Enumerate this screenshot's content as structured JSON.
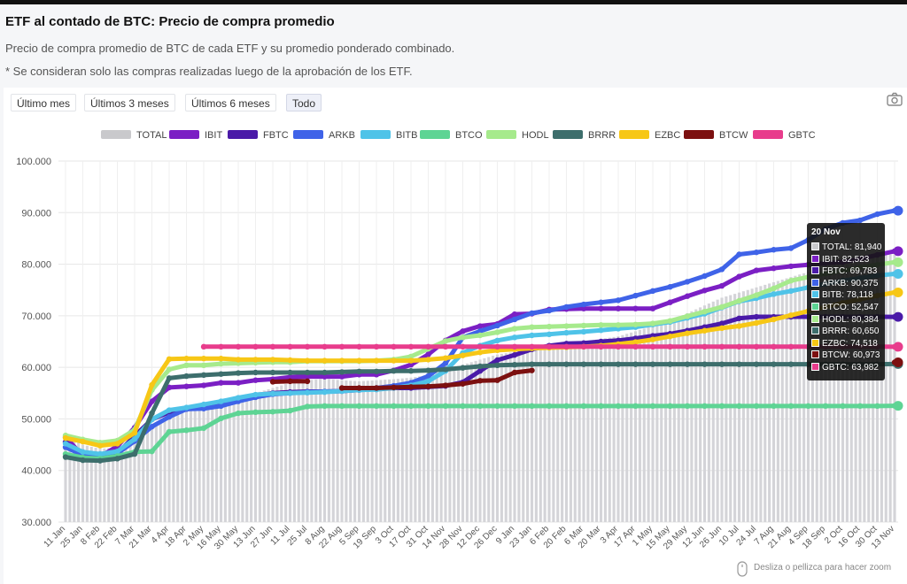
{
  "header": {
    "title": "ETF al contado de BTC: Precio de compra promedio",
    "subtitle": "Precio de compra promedio de BTC de cada ETF y su promedio ponderado combinado.",
    "note": "* Se consideran solo las compras realizadas luego de la aprobación de los ETF."
  },
  "range_buttons": [
    {
      "label": "Último mes",
      "active": false
    },
    {
      "label": "Últimos 3 meses",
      "active": false
    },
    {
      "label": "Últimos 6 meses",
      "active": false
    },
    {
      "label": "Todo",
      "active": true
    }
  ],
  "icons": {
    "camera": "camera-icon",
    "mouse": "mouse-icon"
  },
  "hint": "Desliza o pellizca para hacer zoom",
  "tooltip": {
    "date": "20 Nov",
    "rows": [
      {
        "name": "TOTAL",
        "value": "81,940",
        "color": "#c9c9cc"
      },
      {
        "name": "IBIT",
        "value": "82,523",
        "color": "#7b1fc4"
      },
      {
        "name": "FBTC",
        "value": "69,783",
        "color": "#4a1aa8"
      },
      {
        "name": "ARKB",
        "value": "90,375",
        "color": "#3f63e8"
      },
      {
        "name": "BITB",
        "value": "78,118",
        "color": "#4fc3e8"
      },
      {
        "name": "BTCO",
        "value": "52,547",
        "color": "#5ed494"
      },
      {
        "name": "HODL",
        "value": "80,384",
        "color": "#a6ea8c"
      },
      {
        "name": "BRRR",
        "value": "60,650",
        "color": "#3d6e6c"
      },
      {
        "name": "EZBC",
        "value": "74,518",
        "color": "#f7c716"
      },
      {
        "name": "BTCW",
        "value": "60,973",
        "color": "#7c1010"
      },
      {
        "name": "GBTC",
        "value": "63,982",
        "color": "#e83c8c"
      }
    ]
  },
  "chart_data": {
    "type": "line",
    "title": "",
    "xlabel": "",
    "ylabel": "",
    "ylim": [
      30000,
      100000
    ],
    "y_ticks": [
      "30.000",
      "40.000",
      "50.000",
      "60.000",
      "70.000",
      "80.000",
      "90.000",
      "100.000"
    ],
    "x_ticks": [
      "11 Jan",
      "25 Jan",
      "8 Feb",
      "22 Feb",
      "7 Mar",
      "21 Mar",
      "4 Apr",
      "18 Apr",
      "2 May",
      "16 May",
      "30 May",
      "13 Jun",
      "27 Jun",
      "11 Jul",
      "25 Jul",
      "8 Aug",
      "22 Aug",
      "5 Sep",
      "19 Sep",
      "3 Oct",
      "17 Oct",
      "31 Oct",
      "14 Nov",
      "28 Nov",
      "12 Dec",
      "26 Dec",
      "9 Jan",
      "23 Jan",
      "6 Feb",
      "20 Feb",
      "6 Mar",
      "20 Mar",
      "3 Apr",
      "17 Apr",
      "1 May",
      "15 May",
      "29 May",
      "12 Jun",
      "26 Jun",
      "10 Jul",
      "24 Jul",
      "7 Aug",
      "21 Aug",
      "4 Sep",
      "18 Sep",
      "2 Oct",
      "16 Oct",
      "30 Oct",
      "13 Nov"
    ],
    "grid": true,
    "legend_position": "top",
    "series": [
      {
        "name": "TOTAL",
        "color": "#c9c9cc",
        "kind": "bar",
        "values": [
          46500,
          45000,
          44200,
          44500,
          46000,
          48500,
          51000,
          52500,
          53000,
          53500,
          54500,
          55000,
          56000,
          57000,
          57500,
          57800,
          57500,
          57300,
          57500,
          57700,
          58000,
          58500,
          59500,
          60500,
          61500,
          62500,
          63000,
          63500,
          64000,
          64500,
          65000,
          65500,
          66000,
          67000,
          68000,
          69000,
          70500,
          72000,
          73500,
          74500,
          75500,
          76500,
          77500,
          78500,
          79500,
          80500,
          81000,
          81500,
          81940
        ]
      },
      {
        "name": "IBIT",
        "color": "#7b1fc4",
        "values": [
          46500,
          42800,
          42700,
          44700,
          48300,
          53400,
          56100,
          56300,
          56500,
          57000,
          57000,
          57500,
          57700,
          58100,
          58200,
          58200,
          58200,
          58600,
          58600,
          59400,
          60500,
          62500,
          65200,
          67000,
          68000,
          68400,
          70300,
          70400,
          71200,
          71300,
          71400,
          71400,
          71400,
          71400,
          71400,
          72600,
          73800,
          74900,
          75800,
          77600,
          78800,
          79200,
          79600,
          79900,
          80200,
          80400,
          81000,
          81800,
          82523
        ]
      },
      {
        "name": "FBTC",
        "color": "#4a1aa8",
        "values": [
          45500,
          42600,
          42300,
          43300,
          46700,
          49900,
          51300,
          52100,
          52400,
          53000,
          53800,
          54600,
          55000,
          55200,
          55300,
          55300,
          55400,
          55600,
          55800,
          56000,
          56000,
          56200,
          56400,
          57100,
          59300,
          61400,
          62400,
          63500,
          64200,
          64600,
          64700,
          65000,
          65200,
          65600,
          66100,
          66500,
          67100,
          67800,
          68500,
          69500,
          69800,
          69800,
          69800,
          69800,
          69800,
          69800,
          69800,
          69800,
          69783
        ]
      },
      {
        "name": "ARKB",
        "color": "#3f63e8",
        "values": [
          44500,
          43000,
          42600,
          43300,
          45700,
          48500,
          50400,
          51900,
          52000,
          52500,
          53400,
          54200,
          54800,
          55000,
          55200,
          55300,
          55400,
          55700,
          56000,
          56400,
          57000,
          58300,
          60800,
          65800,
          67000,
          68100,
          69300,
          70500,
          71000,
          71700,
          72200,
          72600,
          73000,
          73900,
          74800,
          75600,
          76600,
          77700,
          79000,
          81900,
          82300,
          82800,
          83100,
          84700,
          86800,
          88000,
          88500,
          89700,
          90375
        ]
      },
      {
        "name": "BITB",
        "color": "#4fc3e8",
        "values": [
          45200,
          43600,
          43200,
          43700,
          46100,
          49900,
          51700,
          52200,
          52800,
          53400,
          54100,
          54700,
          54900,
          55000,
          55100,
          55200,
          55400,
          55600,
          55700,
          56000,
          56500,
          57300,
          59300,
          62800,
          64200,
          65200,
          65800,
          66200,
          66400,
          66700,
          66900,
          67200,
          67500,
          67800,
          68300,
          68800,
          69600,
          70400,
          71600,
          72800,
          73400,
          74200,
          74800,
          75500,
          76200,
          76800,
          77300,
          77800,
          78118
        ]
      },
      {
        "name": "BTCO",
        "color": "#5ed494",
        "values": [
          43200,
          42500,
          42300,
          42800,
          43600,
          43700,
          47500,
          47800,
          48200,
          50100,
          51100,
          51300,
          51400,
          51600,
          52400,
          52500,
          52500,
          52500,
          52500,
          52500,
          52500,
          52500,
          52500,
          52500,
          52500,
          52500,
          52500,
          52500,
          52500,
          52500,
          52500,
          52500,
          52500,
          52500,
          52500,
          52500,
          52500,
          52500,
          52500,
          52500,
          52500,
          52500,
          52500,
          52500,
          52500,
          52500,
          52500,
          52500,
          52547
        ]
      },
      {
        "name": "HODL",
        "color": "#a6ea8c",
        "values": [
          46800,
          46000,
          45400,
          45800,
          47900,
          55600,
          59600,
          60400,
          60400,
          60700,
          60800,
          60900,
          61000,
          61000,
          61200,
          61200,
          61200,
          61200,
          61300,
          61500,
          62100,
          63600,
          65100,
          65800,
          66200,
          66800,
          67500,
          67800,
          67900,
          68000,
          68100,
          68200,
          68200,
          68300,
          68500,
          69000,
          69900,
          70800,
          71700,
          72900,
          74000,
          75300,
          76800,
          77500,
          78200,
          78700,
          79400,
          79900,
          80384
        ]
      },
      {
        "name": "BRRR",
        "color": "#3d6e6c",
        "values": [
          42600,
          42000,
          41900,
          42300,
          43200,
          51100,
          57900,
          58300,
          58500,
          58700,
          58900,
          59000,
          59000,
          59000,
          59000,
          59000,
          59100,
          59200,
          59200,
          59300,
          59300,
          59400,
          59600,
          59900,
          60200,
          60400,
          60500,
          60600,
          60600,
          60600,
          60600,
          60600,
          60600,
          60600,
          60600,
          60600,
          60600,
          60600,
          60600,
          60600,
          60600,
          60600,
          60600,
          60600,
          60600,
          60600,
          60600,
          60600,
          60650
        ]
      },
      {
        "name": "EZBC",
        "color": "#f7c716",
        "values": [
          46300,
          45600,
          44800,
          45200,
          47300,
          56600,
          61600,
          61700,
          61700,
          61700,
          61500,
          61500,
          61500,
          61400,
          61300,
          61300,
          61300,
          61300,
          61300,
          61300,
          61300,
          61500,
          61800,
          62300,
          62900,
          63300,
          63500,
          63700,
          63800,
          63900,
          64000,
          64200,
          64500,
          64900,
          65400,
          66000,
          66600,
          67100,
          67600,
          68000,
          68600,
          69300,
          70100,
          70900,
          71700,
          72500,
          73200,
          73900,
          74518
        ]
      },
      {
        "name": "BTCW",
        "color": "#7c1010",
        "values": [
          null,
          null,
          null,
          null,
          null,
          null,
          null,
          null,
          null,
          null,
          null,
          null,
          57200,
          57300,
          57300,
          null,
          56000,
          56000,
          56000,
          56100,
          56200,
          56300,
          56500,
          56800,
          57400,
          57500,
          59000,
          59400,
          null,
          null,
          null,
          null,
          null,
          null,
          null,
          null,
          null,
          null,
          null,
          null,
          null,
          null,
          null,
          null,
          null,
          null,
          null,
          null,
          60973
        ]
      },
      {
        "name": "GBTC",
        "color": "#e83c8c",
        "values": [
          null,
          null,
          null,
          null,
          null,
          null,
          null,
          null,
          64000,
          64000,
          64000,
          64000,
          64000,
          64000,
          64000,
          64000,
          64000,
          64000,
          64000,
          64000,
          64000,
          64000,
          64000,
          64000,
          64000,
          64000,
          64000,
          64000,
          64000,
          64000,
          64000,
          64000,
          64000,
          64000,
          64000,
          64000,
          64000,
          64000,
          64000,
          64000,
          64000,
          64000,
          64000,
          64000,
          64000,
          64000,
          64000,
          64000,
          63982
        ]
      }
    ]
  }
}
